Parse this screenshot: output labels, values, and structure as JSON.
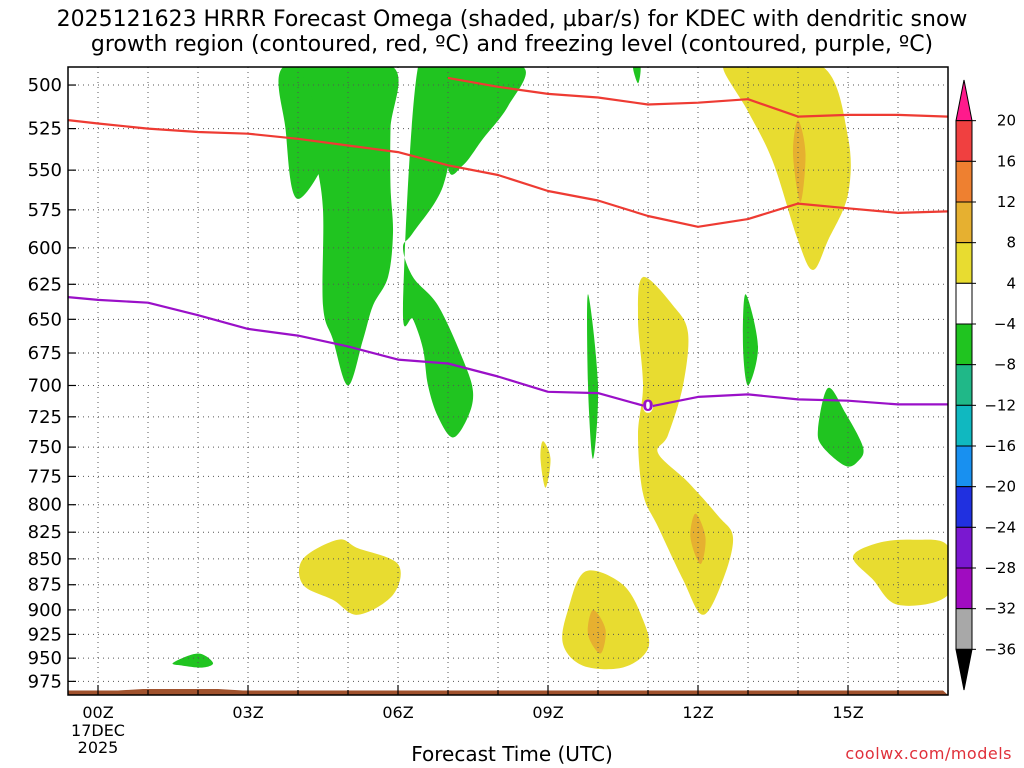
{
  "title_line1": "2025121623 HRRR Forecast Omega (shaded, µbar/s) for KDEC with dendritic snow",
  "title_line2": "growth region (contoured, red, ºC) and freezing level (contoured, purple, ºC)",
  "credit": "coolwx.com/models",
  "chart_data": {
    "type": "contour",
    "xlabel": "Forecast Time (UTC)",
    "ylabel": "",
    "x_tick_labels": [
      "00Z",
      "03Z",
      "06Z",
      "09Z",
      "12Z",
      "15Z"
    ],
    "x_tick_hours": [
      0,
      3,
      6,
      9,
      12,
      15
    ],
    "x_first_tick_sublabels": [
      "17DEC",
      "2025"
    ],
    "xlim_hours": [
      -0.6,
      17
    ],
    "y_ticks_hpa": [
      500,
      525,
      550,
      575,
      600,
      625,
      650,
      675,
      700,
      725,
      750,
      775,
      800,
      825,
      850,
      875,
      900,
      925,
      950,
      975
    ],
    "ylim_hpa": [
      490,
      990
    ],
    "y_scale": "log",
    "y_inverted": true,
    "grid": "dotted",
    "colorbar": {
      "labels": [
        "20",
        "16",
        "12",
        "8",
        "4",
        "−4",
        "−8",
        "−12",
        "−16",
        "−20",
        "−24",
        "−28",
        "−32",
        "−36"
      ],
      "colors": [
        "#ff1a8c",
        "#f04040",
        "#ee8030",
        "#e6b030",
        "#e8dc30",
        "#ffffff",
        "#20c420",
        "#20b888",
        "#10b8c0",
        "#1890f0",
        "#2030e0",
        "#7a18d0",
        "#a00cc0",
        "#a8a8a8",
        "#000000"
      ]
    },
    "omega_colors": {
      "plus4": "#e8dc30",
      "plus8": "#e6b030",
      "minus4": "#20c420"
    },
    "series": [
      {
        "name": "",
        "color": "#ee3b33",
        "points_hpa": [
          [
            -0.6,
            520
          ],
          [
            0,
            522
          ],
          [
            1,
            525
          ],
          [
            2,
            527
          ],
          [
            3,
            528
          ],
          [
            4,
            531
          ],
          [
            5,
            535
          ],
          [
            6,
            539
          ],
          [
            7,
            547
          ],
          [
            8,
            553
          ],
          [
            9,
            563
          ],
          [
            10,
            569
          ],
          [
            11,
            579
          ],
          [
            12,
            586
          ],
          [
            13,
            581
          ],
          [
            14,
            571
          ],
          [
            15,
            574
          ],
          [
            16,
            577
          ],
          [
            17,
            576
          ]
        ]
      },
      {
        "name": "",
        "color": "#ee3b33",
        "points_hpa": [
          [
            7,
            496
          ],
          [
            8,
            501
          ],
          [
            9,
            505
          ],
          [
            10,
            507
          ],
          [
            11,
            511
          ],
          [
            12,
            510
          ],
          [
            13,
            508
          ],
          [
            14,
            518
          ],
          [
            15,
            517
          ],
          [
            16,
            517
          ],
          [
            17,
            518
          ]
        ]
      },
      {
        "name": "",
        "color": "#9a10c8",
        "label": "0",
        "label_at_hpa": [
          11,
          717
        ],
        "points_hpa": [
          [
            -0.6,
            634
          ],
          [
            0,
            636
          ],
          [
            1,
            638
          ],
          [
            2,
            647
          ],
          [
            3,
            657
          ],
          [
            4,
            662
          ],
          [
            5,
            670
          ],
          [
            6,
            680
          ],
          [
            7,
            683
          ],
          [
            8,
            693
          ],
          [
            9,
            705
          ],
          [
            10,
            706
          ],
          [
            11,
            717
          ],
          [
            12,
            709
          ],
          [
            13,
            707
          ],
          [
            14,
            711
          ],
          [
            15,
            712
          ],
          [
            16,
            715
          ],
          [
            17,
            715
          ]
        ]
      }
    ],
    "omega_regions": [
      {
        "level": "-4",
        "points": [
          [
            3.7,
            490
          ],
          [
            3.75,
            525
          ],
          [
            4.0,
            568
          ],
          [
            4.8,
            528
          ],
          [
            5.0,
            490
          ]
        ]
      },
      {
        "level": "-4",
        "points": [
          [
            5.9,
            490
          ],
          [
            5.85,
            525
          ],
          [
            5.85,
            560
          ],
          [
            5.9,
            590
          ],
          [
            5.8,
            620
          ],
          [
            5.5,
            640
          ],
          [
            5.3,
            665
          ],
          [
            5.0,
            700
          ],
          [
            4.7,
            665
          ],
          [
            4.5,
            640
          ],
          [
            4.5,
            575
          ],
          [
            4.35,
            540
          ],
          [
            4.3,
            510
          ],
          [
            4.2,
            490
          ]
        ]
      },
      {
        "level": "-4",
        "points": [
          [
            6.4,
            490
          ],
          [
            7.0,
            490
          ],
          [
            7.1,
            520
          ],
          [
            6.9,
            560
          ],
          [
            6.3,
            590
          ],
          [
            6.1,
            600
          ],
          [
            6.3,
            620
          ],
          [
            6.8,
            640
          ],
          [
            7.3,
            680
          ],
          [
            7.5,
            705
          ],
          [
            7.4,
            725
          ],
          [
            7.1,
            742
          ],
          [
            6.8,
            725
          ],
          [
            6.6,
            700
          ],
          [
            6.5,
            672
          ],
          [
            6.3,
            650
          ],
          [
            6.1,
            640
          ]
        ]
      },
      {
        "level": "-4",
        "points": [
          [
            7.0,
            490
          ],
          [
            8.5,
            490
          ],
          [
            8.2,
            512
          ],
          [
            7.7,
            531
          ],
          [
            7.3,
            547
          ],
          [
            7.0,
            548
          ]
        ]
      },
      {
        "level": "-4",
        "points": [
          [
            9.8,
            632
          ],
          [
            10.0,
            700
          ],
          [
            9.9,
            760
          ],
          [
            9.8,
            700
          ]
        ]
      },
      {
        "level": "-4",
        "points": [
          [
            12.95,
            632
          ],
          [
            13.2,
            670
          ],
          [
            13.0,
            700
          ],
          [
            12.9,
            670
          ]
        ]
      },
      {
        "level": "-4",
        "points": [
          [
            14.6,
            702
          ],
          [
            14.95,
            722
          ],
          [
            15.3,
            750
          ],
          [
            15.2,
            762
          ],
          [
            14.95,
            766
          ],
          [
            14.5,
            750
          ],
          [
            14.4,
            735
          ]
        ]
      },
      {
        "level": "-4",
        "points": [
          [
            1.5,
            955
          ],
          [
            2.0,
            945
          ],
          [
            2.3,
            955
          ],
          [
            2.1,
            960
          ],
          [
            1.7,
            958
          ]
        ]
      },
      {
        "level": "-4",
        "points": [
          [
            10.7,
            490
          ],
          [
            10.85,
            490
          ],
          [
            10.8,
            499
          ]
        ]
      },
      {
        "level": "4",
        "points": [
          [
            13.0,
            490
          ],
          [
            14.5,
            490
          ],
          [
            15.0,
            530
          ],
          [
            15.0,
            565
          ],
          [
            14.6,
            595
          ],
          [
            14.3,
            615
          ],
          [
            14.0,
            595
          ],
          [
            13.5,
            545
          ],
          [
            13.0,
            515
          ],
          [
            12.5,
            490
          ]
        ]
      },
      {
        "level": "4",
        "points": [
          [
            10.9,
            620
          ],
          [
            11.5,
            640
          ],
          [
            11.8,
            660
          ],
          [
            11.7,
            700
          ],
          [
            11.4,
            740
          ],
          [
            11.2,
            755
          ],
          [
            11.8,
            780
          ],
          [
            12.4,
            810
          ],
          [
            12.7,
            830
          ],
          [
            12.5,
            870
          ],
          [
            12.1,
            905
          ],
          [
            11.7,
            870
          ],
          [
            11.2,
            820
          ],
          [
            10.9,
            790
          ],
          [
            10.8,
            740
          ],
          [
            10.9,
            700
          ],
          [
            10.8,
            650
          ]
        ]
      },
      {
        "level": "4",
        "points": [
          [
            9.75,
            862
          ],
          [
            10.5,
            875
          ],
          [
            10.9,
            910
          ],
          [
            11.0,
            940
          ],
          [
            10.5,
            960
          ],
          [
            9.7,
            958
          ],
          [
            9.3,
            935
          ],
          [
            9.4,
            900
          ]
        ]
      },
      {
        "level": "4",
        "points": [
          [
            4.1,
            850
          ],
          [
            4.8,
            832
          ],
          [
            5.2,
            840
          ],
          [
            6.0,
            855
          ],
          [
            5.9,
            885
          ],
          [
            5.2,
            905
          ],
          [
            4.7,
            890
          ],
          [
            4.1,
            875
          ]
        ]
      },
      {
        "level": "4",
        "points": [
          [
            8.9,
            745
          ],
          [
            9.05,
            760
          ],
          [
            8.95,
            785
          ],
          [
            8.85,
            760
          ]
        ]
      },
      {
        "level": "4",
        "points": [
          [
            15.1,
            848
          ],
          [
            15.6,
            835
          ],
          [
            16.3,
            832
          ],
          [
            17.0,
            838
          ],
          [
            17.0,
            885
          ],
          [
            16.0,
            895
          ],
          [
            15.5,
            870
          ]
        ]
      },
      {
        "level": "8",
        "points": [
          [
            14.0,
            520
          ],
          [
            14.15,
            540
          ],
          [
            14.05,
            570
          ],
          [
            13.9,
            540
          ]
        ]
      },
      {
        "level": "8",
        "points": [
          [
            11.95,
            808
          ],
          [
            12.15,
            830
          ],
          [
            12.05,
            855
          ],
          [
            11.85,
            830
          ]
        ]
      },
      {
        "level": "8",
        "points": [
          [
            9.9,
            900
          ],
          [
            10.15,
            920
          ],
          [
            10.05,
            945
          ],
          [
            9.8,
            925
          ]
        ]
      }
    ],
    "terrain": {
      "color": "#a0522d",
      "top_hpa": 985
    }
  }
}
